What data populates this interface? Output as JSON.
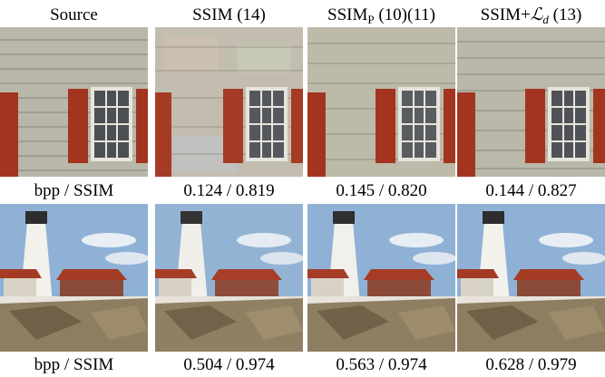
{
  "columns": [
    {
      "name": "Source",
      "tag": ""
    },
    {
      "name": "SSIM",
      "tag": "(14)"
    },
    {
      "name": "SSIM",
      "subscript": "P",
      "tag": "(10)(11)"
    },
    {
      "name": "SSIM+",
      "loss_symbol": "ℒ",
      "loss_sub": "d",
      "tag": "(13)"
    }
  ],
  "rows": [
    {
      "scene": "stone wall with window and red shutters",
      "caption_label": "bpp / SSIM",
      "metrics": [
        "0.124 / 0.819",
        "0.145 / 0.820",
        "0.144 / 0.827"
      ]
    },
    {
      "scene": "lighthouse with red-roof house on rocky shore",
      "caption_label": "bpp / SSIM",
      "metrics": [
        "0.504 / 0.974",
        "0.563 / 0.974",
        "0.628 / 0.979"
      ]
    }
  ],
  "colors": {
    "shutter": "#a3341f",
    "roof": "#a33b25",
    "sky": "#8fb1d6",
    "wall": "#b9b7a9"
  }
}
